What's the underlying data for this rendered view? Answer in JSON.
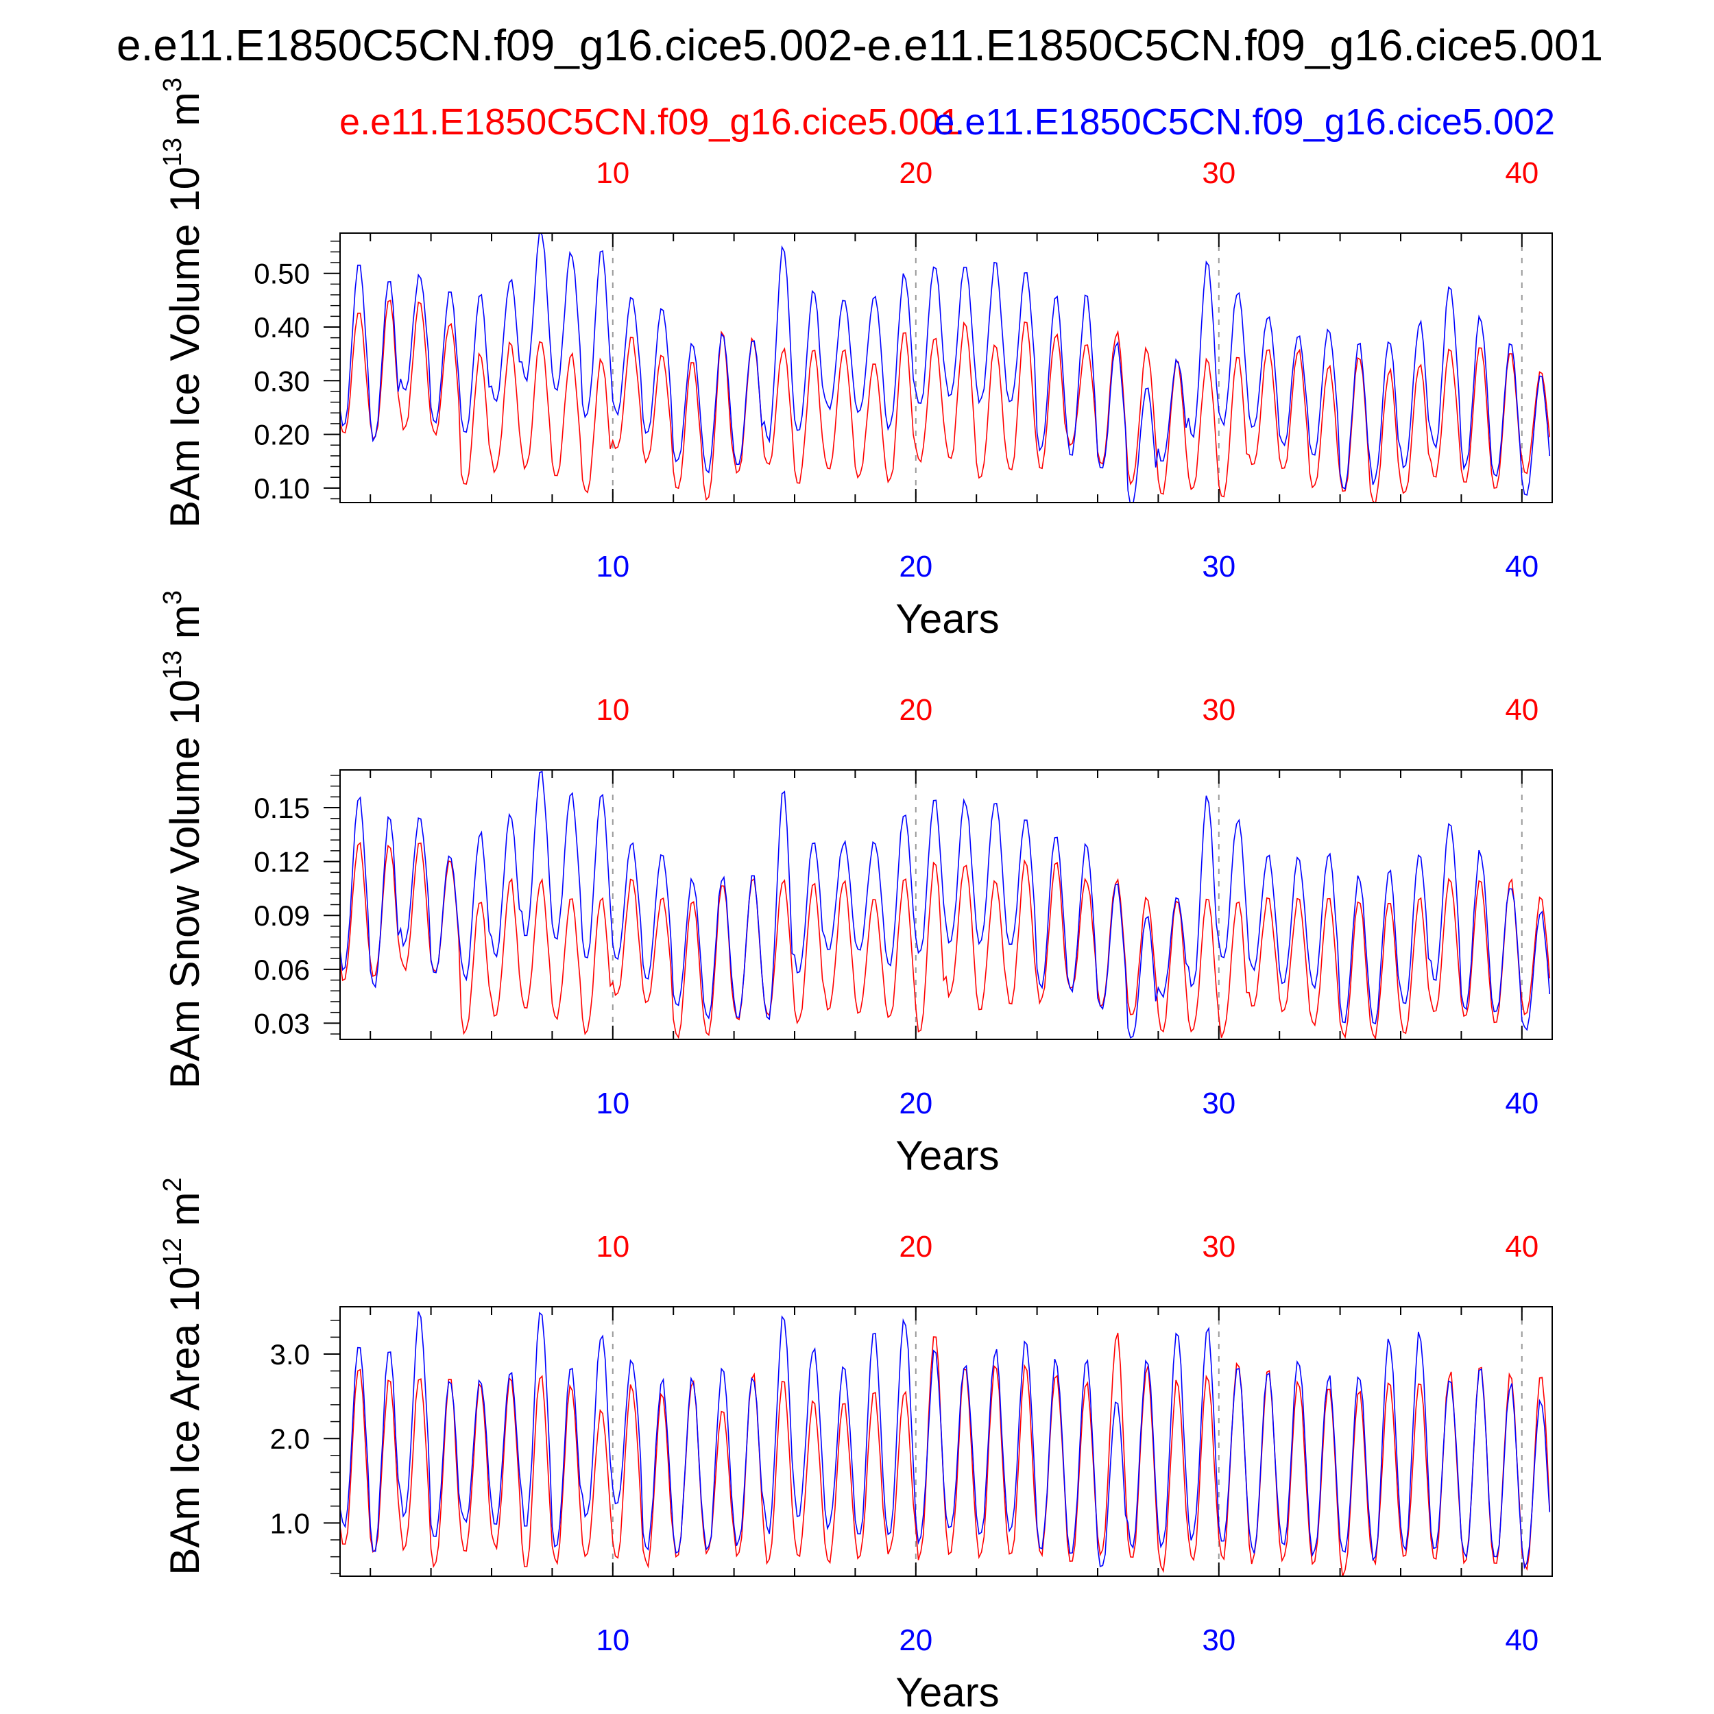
{
  "figure": {
    "title": "e.e11.E1850C5CN.f09_g16.cice5.002-e.e11.E1850C5CN.f09_g16.cice5.001",
    "legend_red": "e.e11.E1850C5CN.f09_g16.cice5.001",
    "legend_blue": "e.e11.E1850C5CN.f09_g16.cice5.002",
    "colors": {
      "red": "#ff0000",
      "blue": "#0000ff",
      "axis": "#000000",
      "grid": "#999999",
      "text": "#000000"
    }
  },
  "chart_data": [
    {
      "type": "line",
      "id": "ice-volume",
      "ylabel": "BAm Ice Volume 10",
      "ylabel_exp": "13",
      "ylabel_unit": " m",
      "ylabel_unit_exp": "3",
      "xlabel": "Years",
      "xlim": [
        1,
        41
      ],
      "ylim": [
        0.073,
        0.575
      ],
      "yticks": [
        0.1,
        0.2,
        0.3,
        0.4,
        0.5
      ],
      "ytick_labels": [
        "0.10",
        "0.20",
        "0.30",
        "0.40",
        "0.50"
      ],
      "xticks": [
        10,
        20,
        30,
        40
      ],
      "xtick_labels": [
        "10",
        "20",
        "30",
        "40"
      ],
      "series": [
        {
          "name": "e.e11.E1850C5CN.f09_g16.cice5.001",
          "color": "#ff0000",
          "annual_max": [
            0.43,
            0.45,
            0.45,
            0.41,
            0.35,
            0.37,
            0.38,
            0.35,
            0.34,
            0.38,
            0.35,
            0.34,
            0.39,
            0.38,
            0.36,
            0.36,
            0.36,
            0.34,
            0.39,
            0.38,
            0.41,
            0.37,
            0.42,
            0.39,
            0.37,
            0.39,
            0.36,
            0.34,
            0.34,
            0.35,
            0.36,
            0.36,
            0.33,
            0.35,
            0.32,
            0.33,
            0.36,
            0.37,
            0.36,
            0.32
          ],
          "annual_min": [
            0.2,
            0.19,
            0.21,
            0.2,
            0.1,
            0.13,
            0.14,
            0.12,
            0.09,
            0.17,
            0.15,
            0.1,
            0.08,
            0.13,
            0.14,
            0.11,
            0.13,
            0.12,
            0.11,
            0.15,
            0.15,
            0.12,
            0.13,
            0.14,
            0.18,
            0.14,
            0.11,
            0.09,
            0.1,
            0.08,
            0.14,
            0.13,
            0.1,
            0.09,
            0.07,
            0.09,
            0.12,
            0.11,
            0.1,
            0.13
          ]
        },
        {
          "name": "e.e11.E1850C5CN.f09_g16.cice5.002",
          "color": "#0000ff",
          "annual_max": [
            0.52,
            0.49,
            0.5,
            0.47,
            0.46,
            0.49,
            0.58,
            0.54,
            0.54,
            0.46,
            0.44,
            0.37,
            0.39,
            0.38,
            0.55,
            0.47,
            0.45,
            0.46,
            0.5,
            0.52,
            0.52,
            0.52,
            0.5,
            0.46,
            0.46,
            0.37,
            0.29,
            0.34,
            0.52,
            0.47,
            0.42,
            0.39,
            0.4,
            0.37,
            0.38,
            0.41,
            0.48,
            0.42,
            0.37,
            0.31
          ],
          "annual_min": [
            0.22,
            0.19,
            0.28,
            0.22,
            0.2,
            0.26,
            0.3,
            0.28,
            0.23,
            0.24,
            0.2,
            0.15,
            0.13,
            0.14,
            0.19,
            0.2,
            0.25,
            0.24,
            0.21,
            0.25,
            0.27,
            0.26,
            0.26,
            0.17,
            0.16,
            0.13,
            0.07,
            0.15,
            0.2,
            0.22,
            0.21,
            0.18,
            0.16,
            0.1,
            0.11,
            0.14,
            0.18,
            0.14,
            0.12,
            0.09
          ]
        }
      ]
    },
    {
      "type": "line",
      "id": "snow-volume",
      "ylabel": "BAm Snow Volume 10",
      "ylabel_exp": "13",
      "ylabel_unit": " m",
      "ylabel_unit_exp": "3",
      "xlabel": "Years",
      "xlim": [
        1,
        41
      ],
      "ylim": [
        0.021,
        0.171
      ],
      "yticks": [
        0.03,
        0.06,
        0.09,
        0.12,
        0.15
      ],
      "ytick_labels": [
        "0.03",
        "0.06",
        "0.09",
        "0.12",
        "0.15"
      ],
      "xticks": [
        10,
        20,
        30,
        40
      ],
      "xtick_labels": [
        "10",
        "20",
        "30",
        "40"
      ],
      "series": [
        {
          "name": "e.e11.E1850C5CN.f09_g16.cice5.001",
          "color": "#ff0000",
          "annual_max": [
            0.13,
            0.13,
            0.13,
            0.12,
            0.1,
            0.11,
            0.11,
            0.1,
            0.1,
            0.11,
            0.1,
            0.1,
            0.11,
            0.11,
            0.11,
            0.11,
            0.11,
            0.1,
            0.11,
            0.12,
            0.12,
            0.11,
            0.12,
            0.12,
            0.11,
            0.11,
            0.1,
            0.1,
            0.1,
            0.1,
            0.1,
            0.1,
            0.1,
            0.1,
            0.1,
            0.1,
            0.11,
            0.11,
            0.11,
            0.1
          ],
          "annual_min": [
            0.055,
            0.055,
            0.06,
            0.058,
            0.025,
            0.033,
            0.038,
            0.032,
            0.025,
            0.045,
            0.042,
            0.023,
            0.022,
            0.032,
            0.035,
            0.03,
            0.038,
            0.036,
            0.032,
            0.026,
            0.046,
            0.038,
            0.042,
            0.042,
            0.048,
            0.04,
            0.033,
            0.026,
            0.025,
            0.023,
            0.04,
            0.036,
            0.029,
            0.023,
            0.022,
            0.025,
            0.036,
            0.033,
            0.03,
            0.035
          ]
        },
        {
          "name": "e.e11.E1850C5CN.f09_g16.cice5.002",
          "color": "#0000ff",
          "annual_max": [
            0.158,
            0.145,
            0.146,
            0.124,
            0.136,
            0.146,
            0.17,
            0.158,
            0.16,
            0.13,
            0.125,
            0.11,
            0.112,
            0.113,
            0.161,
            0.133,
            0.131,
            0.132,
            0.148,
            0.154,
            0.154,
            0.155,
            0.146,
            0.137,
            0.13,
            0.108,
            0.09,
            0.1,
            0.157,
            0.144,
            0.124,
            0.122,
            0.125,
            0.112,
            0.115,
            0.125,
            0.142,
            0.126,
            0.108,
            0.092
          ],
          "annual_min": [
            0.06,
            0.051,
            0.074,
            0.058,
            0.055,
            0.068,
            0.08,
            0.078,
            0.065,
            0.066,
            0.055,
            0.04,
            0.033,
            0.033,
            0.03,
            0.058,
            0.072,
            0.07,
            0.063,
            0.07,
            0.075,
            0.075,
            0.072,
            0.05,
            0.048,
            0.038,
            0.021,
            0.045,
            0.05,
            0.065,
            0.06,
            0.053,
            0.05,
            0.03,
            0.03,
            0.04,
            0.055,
            0.038,
            0.035,
            0.026
          ]
        }
      ]
    },
    {
      "type": "line",
      "id": "ice-area",
      "ylabel": "BAm Ice Area 10",
      "ylabel_exp": "12",
      "ylabel_unit": " m",
      "ylabel_unit_exp": "2",
      "xlabel": "Years",
      "xlim": [
        1,
        41
      ],
      "ylim": [
        0.37,
        3.56
      ],
      "yticks": [
        1.0,
        2.0,
        3.0
      ],
      "ytick_labels": [
        "1.0",
        "2.0",
        "3.0"
      ],
      "xticks": [
        10,
        20,
        30,
        40
      ],
      "xtick_labels": [
        "10",
        "20",
        "30",
        "40"
      ],
      "series": [
        {
          "name": "e.e11.E1850C5CN.f09_g16.cice5.001",
          "color": "#ff0000",
          "annual_max": [
            2.85,
            2.7,
            2.75,
            2.7,
            2.65,
            2.75,
            2.8,
            2.65,
            2.35,
            2.65,
            2.55,
            2.7,
            2.35,
            2.75,
            2.7,
            2.45,
            2.45,
            2.55,
            2.55,
            3.25,
            2.85,
            2.9,
            2.85,
            2.75,
            2.7,
            3.25,
            2.85,
            2.7,
            2.75,
            2.95,
            2.8,
            2.7,
            2.65,
            2.6,
            2.7,
            2.7,
            2.8,
            2.85,
            2.75,
            2.75
          ],
          "annual_min": [
            0.7,
            0.65,
            0.7,
            0.5,
            0.65,
            0.7,
            0.5,
            0.55,
            0.6,
            0.6,
            0.5,
            0.6,
            0.65,
            0.6,
            0.55,
            0.6,
            0.55,
            0.6,
            0.65,
            0.6,
            0.65,
            0.6,
            0.6,
            0.65,
            0.55,
            0.6,
            0.55,
            0.45,
            0.55,
            0.6,
            0.55,
            0.55,
            0.5,
            0.4,
            0.55,
            0.6,
            0.6,
            0.55,
            0.5,
            0.45
          ]
        },
        {
          "name": "e.e11.E1850C5CN.f09_g16.cice5.002",
          "color": "#0000ff",
          "annual_max": [
            3.15,
            3.1,
            3.5,
            2.7,
            2.7,
            2.8,
            3.55,
            2.9,
            3.25,
            2.95,
            2.7,
            2.7,
            2.85,
            2.75,
            3.45,
            3.1,
            2.85,
            3.3,
            3.45,
            3.05,
            2.9,
            3.05,
            3.2,
            2.95,
            2.95,
            2.45,
            2.95,
            3.25,
            3.3,
            2.85,
            2.8,
            2.95,
            2.75,
            2.75,
            3.2,
            3.25,
            2.75,
            2.85,
            2.65,
            2.45
          ],
          "annual_min": [
            0.95,
            0.7,
            1.1,
            0.8,
            1.0,
            1.0,
            1.0,
            0.7,
            1.05,
            1.2,
            0.7,
            0.65,
            0.65,
            0.75,
            0.9,
            1.1,
            0.95,
            0.8,
            0.85,
            0.8,
            0.9,
            0.85,
            0.9,
            0.7,
            0.6,
            0.45,
            0.7,
            0.7,
            0.8,
            0.75,
            0.65,
            0.7,
            0.65,
            0.6,
            0.6,
            0.7,
            0.7,
            0.6,
            0.55,
            0.5
          ]
        }
      ]
    }
  ]
}
